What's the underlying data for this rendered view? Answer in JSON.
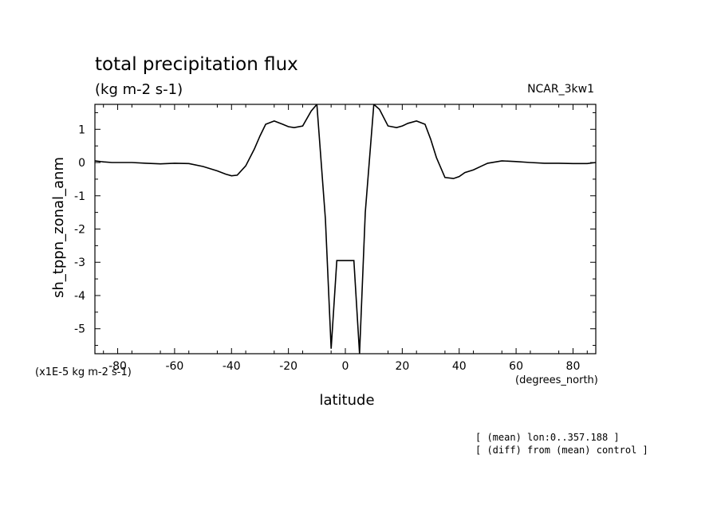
{
  "title": "total precipitation flux",
  "units": "(kg m-2 s-1)",
  "dataset": "NCAR_3kw1",
  "scale_label": "(x1E-5 kg m-2 s-1)",
  "x_units": "(degrees_north)",
  "notes": [
    "[ (mean) lon:0..357.188 ]",
    "[ (diff) from (mean) control ]"
  ],
  "chart_data": {
    "type": "line",
    "xlabel": "latitude",
    "ylabel": "sh_tppn_zonal_anm",
    "xlim": [
      -88,
      88
    ],
    "ylim": [
      -5.75,
      1.75
    ],
    "x_ticks": [
      -80,
      -60,
      -40,
      -20,
      0,
      20,
      40,
      60,
      80
    ],
    "x_tick_labels": [
      "-80",
      "-60",
      "-40",
      "-20",
      "0",
      "20",
      "40",
      "60",
      "80"
    ],
    "y_ticks": [
      -5,
      -4,
      -3,
      -2,
      -1,
      0,
      1
    ],
    "y_tick_labels": [
      "-5",
      "-4",
      "-3",
      "-2",
      "-1",
      "0",
      "1"
    ],
    "grid": false,
    "series": [
      {
        "color": "#000000",
        "x": [
          -88,
          -85,
          -82,
          -75,
          -70,
          -65,
          -60,
          -55,
          -50,
          -45,
          -42,
          -40,
          -38,
          -35,
          -32,
          -30,
          -28,
          -25,
          -22,
          -20,
          -18,
          -15,
          -12,
          -10,
          -7,
          -5,
          -3,
          3,
          5,
          7,
          10,
          12,
          15,
          18,
          20,
          22,
          25,
          28,
          30,
          32,
          35,
          38,
          40,
          42,
          45,
          48,
          50,
          55,
          60,
          65,
          70,
          75,
          80,
          85,
          88
        ],
        "y": [
          0.05,
          0.02,
          0.0,
          0.0,
          -0.02,
          -0.04,
          -0.02,
          -0.03,
          -0.12,
          -0.25,
          -0.35,
          -0.4,
          -0.38,
          -0.1,
          0.4,
          0.8,
          1.15,
          1.25,
          1.15,
          1.08,
          1.05,
          1.1,
          1.55,
          1.75,
          -1.7,
          -5.6,
          -2.95,
          -2.95,
          -5.75,
          -1.5,
          1.75,
          1.6,
          1.1,
          1.05,
          1.1,
          1.18,
          1.25,
          1.15,
          0.7,
          0.15,
          -0.45,
          -0.48,
          -0.42,
          -0.3,
          -0.22,
          -0.1,
          -0.02,
          0.05,
          0.03,
          0.0,
          -0.02,
          -0.02,
          -0.03,
          -0.03,
          0.0
        ]
      }
    ]
  }
}
